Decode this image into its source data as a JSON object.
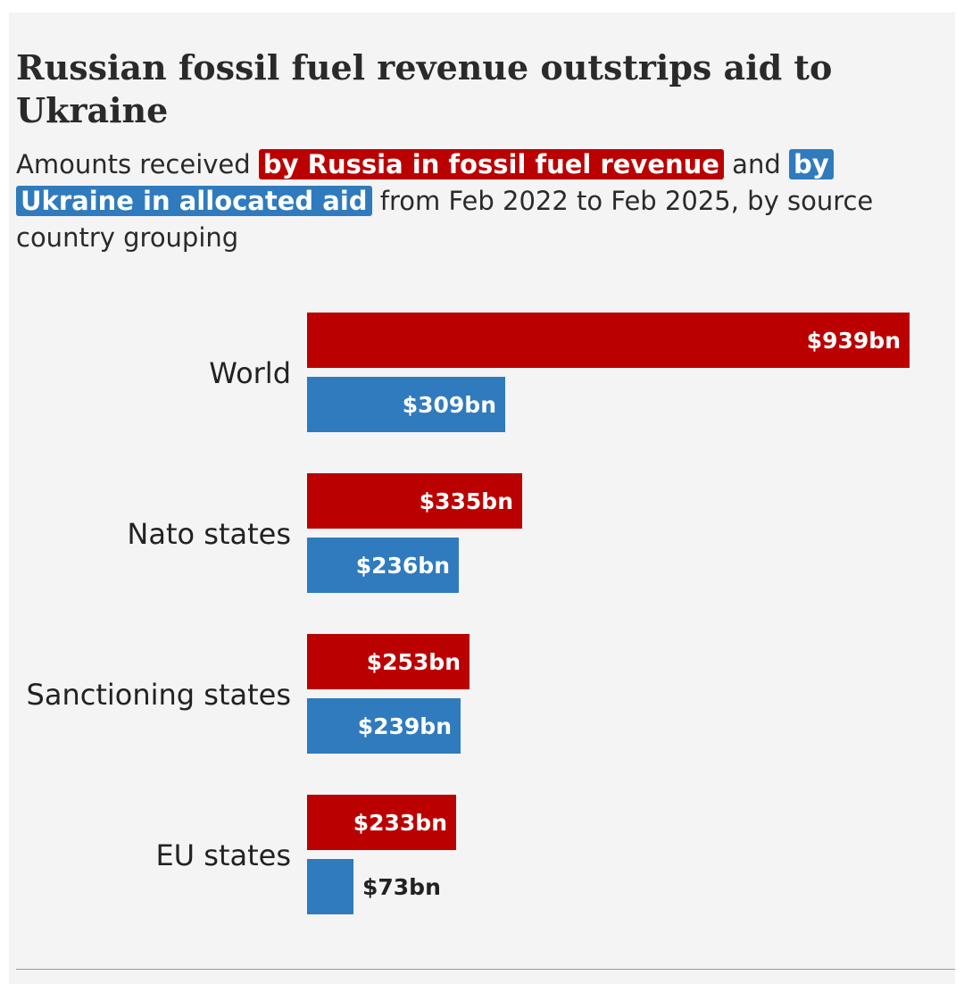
{
  "title": "Russian fossil fuel revenue outstrips aid to Ukraine",
  "subtitle": {
    "lead": "Amounts received",
    "russia_highlight": "by Russia in fossil fuel revenue",
    "and": "and",
    "ukraine_highlight": "by Ukraine in allocated aid",
    "tail": "from Feb 2022 to Feb 2025, by source country grouping"
  },
  "colors": {
    "russia": "#bb0000",
    "ukraine": "#2f7bbd"
  },
  "chart_data": {
    "type": "bar",
    "orientation": "horizontal",
    "categories": [
      "World",
      "Nato states",
      "Sanctioning states",
      "EU states"
    ],
    "series": [
      {
        "key": "russia",
        "color": "#bb0000",
        "values": [
          939,
          335,
          253,
          233
        ],
        "labels": [
          "$939bn",
          "$335bn",
          "$253bn",
          "$233bn"
        ]
      },
      {
        "key": "ukraine",
        "color": "#2f7bbd",
        "values": [
          309,
          236,
          239,
          73
        ],
        "labels": [
          "$309bn",
          "$236bn",
          "$239bn",
          "$73bn"
        ]
      }
    ],
    "unit": "bn USD",
    "xlim": [
      0,
      939
    ],
    "grid": false,
    "legend": "inline in subtitle"
  }
}
